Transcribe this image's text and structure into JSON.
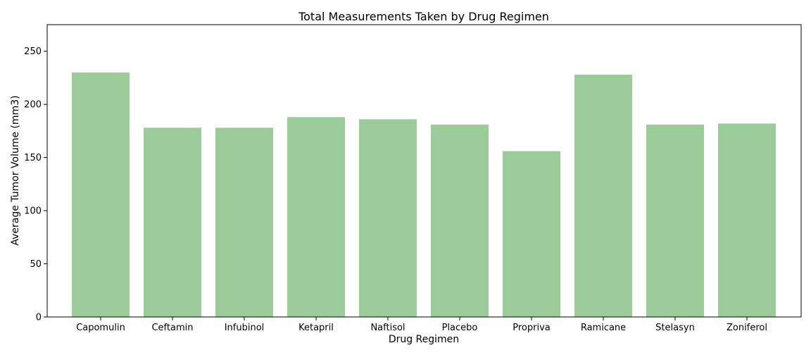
{
  "chart_data": {
    "type": "bar",
    "title": "Total Measurements Taken by Drug Regimen",
    "xlabel": "Drug Regimen",
    "ylabel": "Average Tumor Volume (mm3)",
    "categories": [
      "Capomulin",
      "Ceftamin",
      "Infubinol",
      "Ketapril",
      "Naftisol",
      "Placebo",
      "Propriva",
      "Ramicane",
      "Stelasyn",
      "Zoniferol"
    ],
    "values": [
      230,
      178,
      178,
      188,
      186,
      181,
      156,
      228,
      181,
      182
    ],
    "ylim": [
      0,
      275
    ],
    "yticks": [
      0,
      50,
      100,
      150,
      200,
      250
    ],
    "bar_color": "#9ACB98",
    "grid": false,
    "legend": "none"
  }
}
